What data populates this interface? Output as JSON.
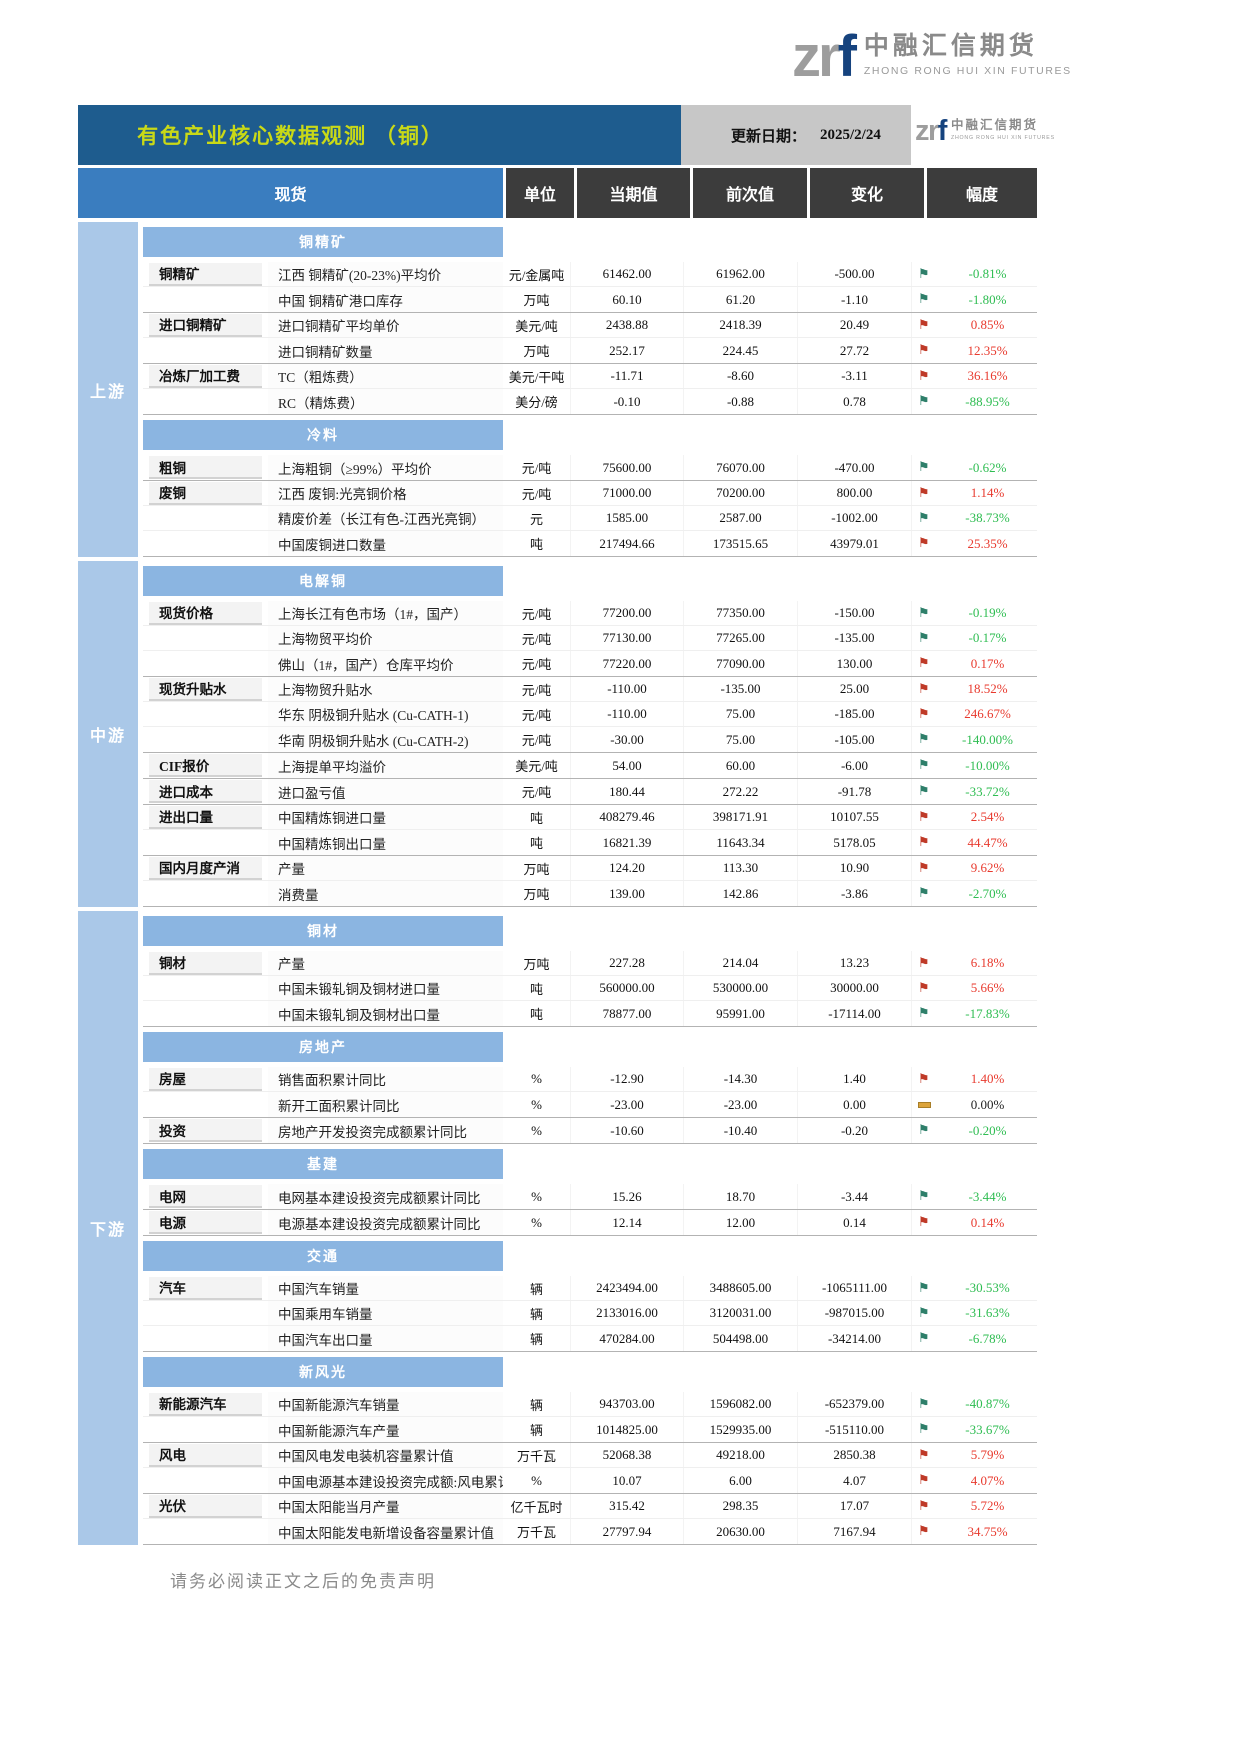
{
  "logo": {
    "mark_zr": "zr",
    "mark_f": "f",
    "name_cn": "中融汇信期货",
    "name_en": "ZHONG RONG HUI XIN FUTURES"
  },
  "header": {
    "title": "有色产业核心数据观测 （铜）",
    "update_label": "更新日期：",
    "update_date": "2025/2/24"
  },
  "columns": {
    "spot": "现货",
    "unit": "单位",
    "current": "当期值",
    "previous": "前次值",
    "change": "变化",
    "rate": "幅度"
  },
  "colors": {
    "title_bg": "#1e5c8e",
    "title_text": "#c9d917",
    "spot_header_bg": "#3a7dbf",
    "dark_header_bg": "#3c3c3c",
    "section_band_bg": "#8bb5e1",
    "sidebar_bg": "#aac8e8",
    "up_red": "#e83a2e",
    "down_green": "#2fbd52",
    "flag_up": "#bf3a28",
    "flag_down": "#2e7f6a",
    "flat_dash": "#dca43c"
  },
  "groups": [
    {
      "name": "上游",
      "sections": [
        {
          "title": "铜精矿",
          "blocks": [
            {
              "category": "铜精矿",
              "rows": [
                {
                  "indicator": "江西 铜精矿(20-23%)平均价",
                  "unit": "元/金属吨",
                  "current": "61462.00",
                  "previous": "61962.00",
                  "change": "-500.00",
                  "dir": "down",
                  "rate": "-0.81%"
                },
                {
                  "indicator": "中国 铜精矿港口库存",
                  "unit": "万吨",
                  "current": "60.10",
                  "previous": "61.20",
                  "change": "-1.10",
                  "dir": "down",
                  "rate": "-1.80%"
                }
              ]
            },
            {
              "category": "进口铜精矿",
              "rows": [
                {
                  "indicator": "进口铜精矿平均单价",
                  "unit": "美元/吨",
                  "current": "2438.88",
                  "previous": "2418.39",
                  "change": "20.49",
                  "dir": "up",
                  "rate": "0.85%"
                },
                {
                  "indicator": "进口铜精矿数量",
                  "unit": "万吨",
                  "current": "252.17",
                  "previous": "224.45",
                  "change": "27.72",
                  "dir": "up",
                  "rate": "12.35%"
                }
              ]
            },
            {
              "category": "冶炼厂加工费",
              "rows": [
                {
                  "indicator": "TC（粗炼费）",
                  "unit": "美元/干吨",
                  "current": "-11.71",
                  "previous": "-8.60",
                  "change": "-3.11",
                  "dir": "up",
                  "rate": "36.16%"
                },
                {
                  "indicator": "RC（精炼费）",
                  "unit": "美分/磅",
                  "current": "-0.10",
                  "previous": "-0.88",
                  "change": "0.78",
                  "dir": "down",
                  "rate": "-88.95%"
                }
              ]
            }
          ]
        },
        {
          "title": "冷料",
          "blocks": [
            {
              "category": "粗铜",
              "rows": [
                {
                  "indicator": "上海粗铜（≥99%）平均价",
                  "unit": "元/吨",
                  "current": "75600.00",
                  "previous": "76070.00",
                  "change": "-470.00",
                  "dir": "down",
                  "rate": "-0.62%"
                }
              ]
            },
            {
              "category": "废铜",
              "rows": [
                {
                  "indicator": "江西 废铜:光亮铜价格",
                  "unit": "元/吨",
                  "current": "71000.00",
                  "previous": "70200.00",
                  "change": "800.00",
                  "dir": "up",
                  "rate": "1.14%"
                },
                {
                  "indicator": "精废价差（长江有色-江西光亮铜）",
                  "unit": "元",
                  "current": "1585.00",
                  "previous": "2587.00",
                  "change": "-1002.00",
                  "dir": "down",
                  "rate": "-38.73%"
                },
                {
                  "indicator": "中国废铜进口数量",
                  "unit": "吨",
                  "current": "217494.66",
                  "previous": "173515.65",
                  "change": "43979.01",
                  "dir": "up",
                  "rate": "25.35%"
                }
              ]
            }
          ]
        }
      ]
    },
    {
      "name": "中游",
      "sections": [
        {
          "title": "电解铜",
          "blocks": [
            {
              "category": "现货价格",
              "rows": [
                {
                  "indicator": "上海长江有色市场（1#，国产）",
                  "unit": "元/吨",
                  "current": "77200.00",
                  "previous": "77350.00",
                  "change": "-150.00",
                  "dir": "down",
                  "rate": "-0.19%"
                },
                {
                  "indicator": "上海物贸平均价",
                  "unit": "元/吨",
                  "current": "77130.00",
                  "previous": "77265.00",
                  "change": "-135.00",
                  "dir": "down",
                  "rate": "-0.17%"
                },
                {
                  "indicator": "佛山（1#，国产）仓库平均价",
                  "unit": "元/吨",
                  "current": "77220.00",
                  "previous": "77090.00",
                  "change": "130.00",
                  "dir": "up",
                  "rate": "0.17%"
                }
              ]
            },
            {
              "category": "现货升贴水",
              "rows": [
                {
                  "indicator": "上海物贸升贴水",
                  "unit": "元/吨",
                  "current": "-110.00",
                  "previous": "-135.00",
                  "change": "25.00",
                  "dir": "up",
                  "rate": "18.52%"
                },
                {
                  "indicator": "华东 阴极铜升贴水 (Cu-CATH-1)",
                  "unit": "元/吨",
                  "current": "-110.00",
                  "previous": "75.00",
                  "change": "-185.00",
                  "dir": "up",
                  "rate": "246.67%"
                },
                {
                  "indicator": "华南 阴极铜升贴水 (Cu-CATH-2)",
                  "unit": "元/吨",
                  "current": "-30.00",
                  "previous": "75.00",
                  "change": "-105.00",
                  "dir": "down",
                  "rate": "-140.00%"
                }
              ]
            },
            {
              "category": "CIF报价",
              "rows": [
                {
                  "indicator": "上海提单平均溢价",
                  "unit": "美元/吨",
                  "current": "54.00",
                  "previous": "60.00",
                  "change": "-6.00",
                  "dir": "down",
                  "rate": "-10.00%"
                }
              ]
            },
            {
              "category": "进口成本",
              "rows": [
                {
                  "indicator": "进口盈亏值",
                  "unit": "元/吨",
                  "current": "180.44",
                  "previous": "272.22",
                  "change": "-91.78",
                  "dir": "down",
                  "rate": "-33.72%"
                }
              ]
            },
            {
              "category": "进出口量",
              "rows": [
                {
                  "indicator": "中国精炼铜进口量",
                  "unit": "吨",
                  "current": "408279.46",
                  "previous": "398171.91",
                  "change": "10107.55",
                  "dir": "up",
                  "rate": "2.54%"
                },
                {
                  "indicator": "中国精炼铜出口量",
                  "unit": "吨",
                  "current": "16821.39",
                  "previous": "11643.34",
                  "change": "5178.05",
                  "dir": "up",
                  "rate": "44.47%"
                }
              ]
            },
            {
              "category": "国内月度产消",
              "rows": [
                {
                  "indicator": "产量",
                  "unit": "万吨",
                  "current": "124.20",
                  "previous": "113.30",
                  "change": "10.90",
                  "dir": "up",
                  "rate": "9.62%"
                },
                {
                  "indicator": "消费量",
                  "unit": "万吨",
                  "current": "139.00",
                  "previous": "142.86",
                  "change": "-3.86",
                  "dir": "down",
                  "rate": "-2.70%"
                }
              ]
            }
          ]
        }
      ]
    },
    {
      "name": "下游",
      "sections": [
        {
          "title": "铜材",
          "blocks": [
            {
              "category": "铜材",
              "rows": [
                {
                  "indicator": "产量",
                  "unit": "万吨",
                  "current": "227.28",
                  "previous": "214.04",
                  "change": "13.23",
                  "dir": "up",
                  "rate": "6.18%"
                },
                {
                  "indicator": "中国未锻轧铜及铜材进口量",
                  "unit": "吨",
                  "current": "560000.00",
                  "previous": "530000.00",
                  "change": "30000.00",
                  "dir": "up",
                  "rate": "5.66%"
                },
                {
                  "indicator": "中国未锻轧铜及铜材出口量",
                  "unit": "吨",
                  "current": "78877.00",
                  "previous": "95991.00",
                  "change": "-17114.00",
                  "dir": "down",
                  "rate": "-17.83%"
                }
              ]
            }
          ]
        },
        {
          "title": "房地产",
          "blocks": [
            {
              "category": "房屋",
              "rows": [
                {
                  "indicator": "销售面积累计同比",
                  "unit": "%",
                  "current": "-12.90",
                  "previous": "-14.30",
                  "change": "1.40",
                  "dir": "up",
                  "rate": "1.40%"
                },
                {
                  "indicator": "新开工面积累计同比",
                  "unit": "%",
                  "current": "-23.00",
                  "previous": "-23.00",
                  "change": "0.00",
                  "dir": "flat",
                  "rate": "0.00%"
                }
              ]
            },
            {
              "category": "投资",
              "rows": [
                {
                  "indicator": "房地产开发投资完成额累计同比",
                  "unit": "%",
                  "current": "-10.60",
                  "previous": "-10.40",
                  "change": "-0.20",
                  "dir": "down",
                  "rate": "-0.20%"
                }
              ]
            }
          ]
        },
        {
          "title": "基建",
          "blocks": [
            {
              "category": "电网",
              "rows": [
                {
                  "indicator": "电网基本建设投资完成额累计同比",
                  "unit": "%",
                  "current": "15.26",
                  "previous": "18.70",
                  "change": "-3.44",
                  "dir": "down",
                  "rate": "-3.44%"
                }
              ]
            },
            {
              "category": "电源",
              "rows": [
                {
                  "indicator": "电源基本建设投资完成额累计同比",
                  "unit": "%",
                  "current": "12.14",
                  "previous": "12.00",
                  "change": "0.14",
                  "dir": "up",
                  "rate": "0.14%"
                }
              ]
            }
          ]
        },
        {
          "title": "交通",
          "blocks": [
            {
              "category": "汽车",
              "rows": [
                {
                  "indicator": "中国汽车销量",
                  "unit": "辆",
                  "current": "2423494.00",
                  "previous": "3488605.00",
                  "change": "-1065111.00",
                  "dir": "down",
                  "rate": "-30.53%"
                },
                {
                  "indicator": "中国乘用车销量",
                  "unit": "辆",
                  "current": "2133016.00",
                  "previous": "3120031.00",
                  "change": "-987015.00",
                  "dir": "down",
                  "rate": "-31.63%"
                },
                {
                  "indicator": "中国汽车出口量",
                  "unit": "辆",
                  "current": "470284.00",
                  "previous": "504498.00",
                  "change": "-34214.00",
                  "dir": "down",
                  "rate": "-6.78%"
                }
              ]
            }
          ]
        },
        {
          "title": "新风光",
          "blocks": [
            {
              "category": "新能源汽车",
              "rows": [
                {
                  "indicator": "中国新能源汽车销量",
                  "unit": "辆",
                  "current": "943703.00",
                  "previous": "1596082.00",
                  "change": "-652379.00",
                  "dir": "down",
                  "rate": "-40.87%"
                },
                {
                  "indicator": "中国新能源汽车产量",
                  "unit": "辆",
                  "current": "1014825.00",
                  "previous": "1529935.00",
                  "change": "-515110.00",
                  "dir": "down",
                  "rate": "-33.67%"
                }
              ]
            },
            {
              "category": "风电",
              "rows": [
                {
                  "indicator": "中国风电发电装机容量累计值",
                  "unit": "万千瓦",
                  "current": "52068.38",
                  "previous": "49218.00",
                  "change": "2850.38",
                  "dir": "up",
                  "rate": "5.79%"
                },
                {
                  "indicator": "中国电源基本建设投资完成额:风电累计同",
                  "unit": "%",
                  "current": "10.07",
                  "previous": "6.00",
                  "change": "4.07",
                  "dir": "up",
                  "rate": "4.07%"
                }
              ]
            },
            {
              "category": "光伏",
              "rows": [
                {
                  "indicator": "中国太阳能当月产量",
                  "unit": "亿千瓦时",
                  "current": "315.42",
                  "previous": "298.35",
                  "change": "17.07",
                  "dir": "up",
                  "rate": "5.72%"
                },
                {
                  "indicator": "中国太阳能发电新增设备容量累计值",
                  "unit": "万千瓦",
                  "current": "27797.94",
                  "previous": "20630.00",
                  "change": "7167.94",
                  "dir": "up",
                  "rate": "34.75%"
                }
              ]
            }
          ]
        }
      ]
    }
  ],
  "page": {
    "footer": "请务必阅读正文之后的免责声明"
  }
}
